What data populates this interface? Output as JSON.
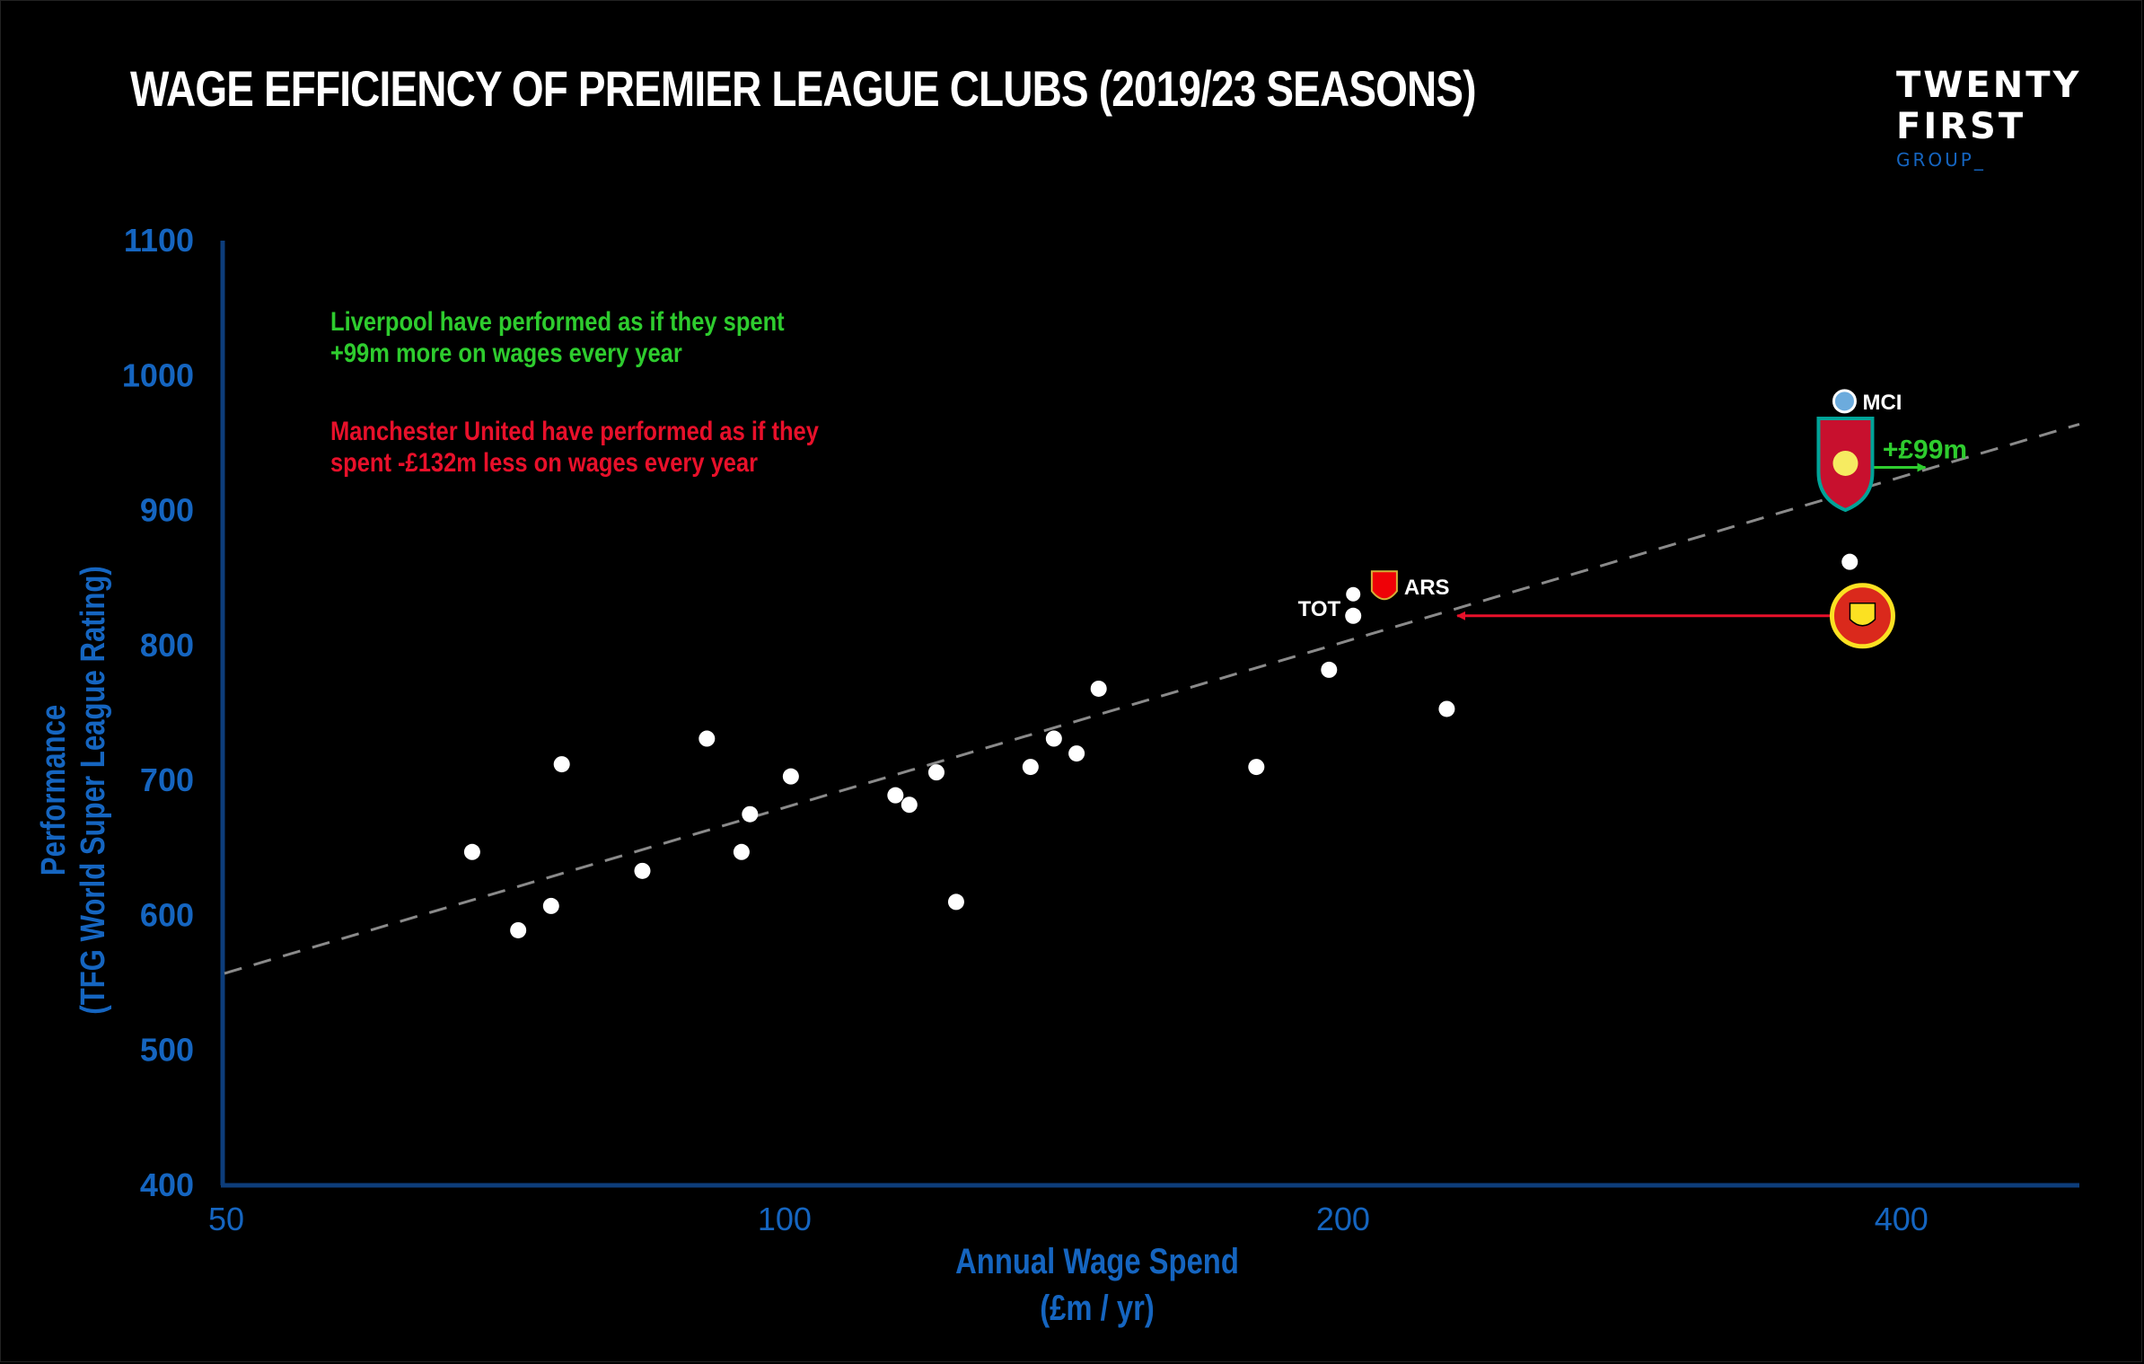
{
  "title": "WAGE EFFICIENCY OF PREMIER LEAGUE CLUBS (2019/23 SEASONS)",
  "logo": {
    "line1": "TWENTY",
    "line2": "FIRST",
    "line3": "GROUP_"
  },
  "annotations": {
    "liverpool_line1": "Liverpool have performed as if they spent",
    "liverpool_line2": "+99m more on wages every year",
    "manutd_line1": "Manchester United have performed as if they",
    "manutd_line2": "spent -£132m less on wages every year",
    "liverpool_arrow_label": "+£99m"
  },
  "colors": {
    "axis": "#1565c0",
    "green": "#2ecc2e",
    "red": "#e8102a",
    "trend": "#8a8a8a",
    "point": "#ffffff"
  },
  "chart_data": {
    "type": "scatter",
    "title": "WAGE EFFICIENCY OF PREMIER LEAGUE CLUBS (2019/23 SEASONS)",
    "xlabel_line1": "Annual Wage Spend",
    "xlabel_line2": "(£m / yr)",
    "ylabel_line1": "Performance",
    "ylabel_line2": "(TFG World Super League Rating)",
    "x_scale": "log",
    "xlim": [
      50,
      500
    ],
    "ylim": [
      400,
      1100
    ],
    "x_ticks": [
      50,
      100,
      200,
      400
    ],
    "x_tick_labels": [
      "50",
      "100",
      "200",
      "400"
    ],
    "y_ticks": [
      400,
      500,
      600,
      700,
      800,
      900,
      1000,
      1100
    ],
    "y_tick_labels": [
      "400",
      "500",
      "600",
      "700",
      "800",
      "900",
      "1000",
      "1100"
    ],
    "trend_line": {
      "x": [
        50,
        500
      ],
      "y": [
        557,
        964
      ]
    },
    "points": [
      {
        "x": 68,
        "y": 647
      },
      {
        "x": 72,
        "y": 589
      },
      {
        "x": 75,
        "y": 607
      },
      {
        "x": 76,
        "y": 712
      },
      {
        "x": 84,
        "y": 633
      },
      {
        "x": 91,
        "y": 731
      },
      {
        "x": 95,
        "y": 647
      },
      {
        "x": 96,
        "y": 675
      },
      {
        "x": 101,
        "y": 703
      },
      {
        "x": 115,
        "y": 689
      },
      {
        "x": 117,
        "y": 682
      },
      {
        "x": 121,
        "y": 706
      },
      {
        "x": 124,
        "y": 610
      },
      {
        "x": 136,
        "y": 710
      },
      {
        "x": 140,
        "y": 731
      },
      {
        "x": 144,
        "y": 720
      },
      {
        "x": 148,
        "y": 768
      },
      {
        "x": 180,
        "y": 710
      },
      {
        "x": 197,
        "y": 782
      },
      {
        "x": 228,
        "y": 753
      },
      {
        "x": 376,
        "y": 862
      }
    ],
    "labeled_clubs": [
      {
        "label": "MCI",
        "x": 382,
        "y": 981
      },
      {
        "label": "LIV",
        "x": 374,
        "y": 935
      },
      {
        "label": "TOT",
        "x": 203,
        "y": 830
      },
      {
        "label": "ARS",
        "x": 211,
        "y": 843
      },
      {
        "label": "MUN",
        "x": 382,
        "y": 822
      }
    ],
    "arrows": [
      {
        "name": "liverpool",
        "from_x": 383,
        "to_x": 413,
        "y": 932,
        "label": "+£99m"
      },
      {
        "name": "manutd",
        "from_x": 375,
        "to_x": 231,
        "y": 822
      }
    ]
  }
}
